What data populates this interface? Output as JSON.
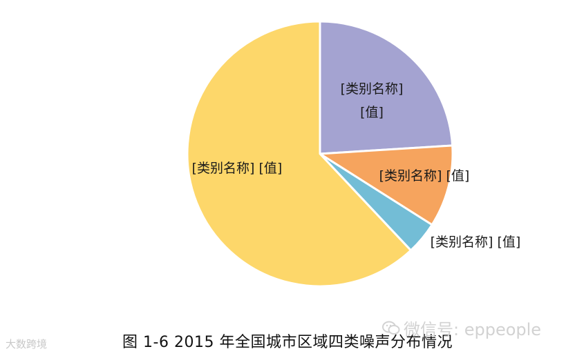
{
  "chart_data": {
    "type": "pie",
    "start_angle_deg": 0,
    "direction": "clockwise",
    "slices": [
      {
        "label": "[类别名称]",
        "value_label": "[值]",
        "value": 24,
        "color": "#a4a3d1"
      },
      {
        "label": "[类别名称]",
        "value_label": "[值]",
        "value": 10,
        "color": "#f6a45e"
      },
      {
        "label": "[类别名称]",
        "value_label": "[值]",
        "value": 4,
        "color": "#73bdd6"
      },
      {
        "label": "[类别名称]",
        "value_label": "[值]",
        "value": 62,
        "color": "#fdd76a"
      }
    ]
  },
  "caption": "图 1-6   2015 年全国城市区域四类噪声分布情况",
  "watermark_left": "大数跨境",
  "watermark_right": "微信号: eppeople"
}
